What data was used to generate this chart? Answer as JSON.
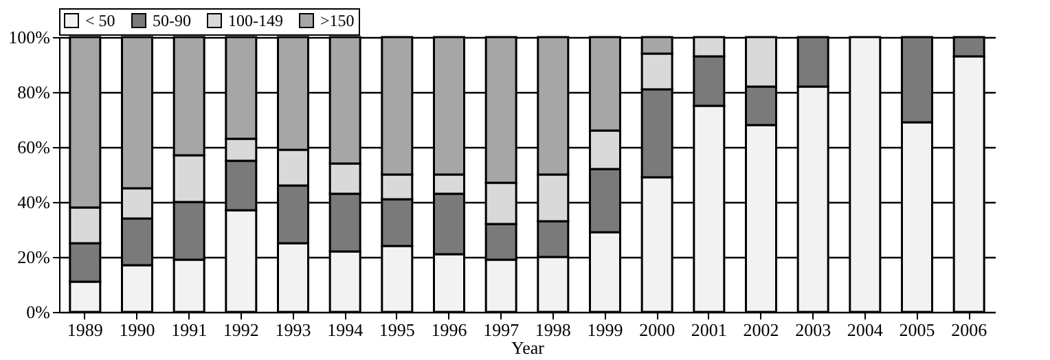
{
  "chart_data": {
    "type": "bar",
    "stacked": true,
    "xlabel": "Year",
    "categories": [
      "1989",
      "1990",
      "1991",
      "1992",
      "1993",
      "1994",
      "1995",
      "1996",
      "1997",
      "1998",
      "1999",
      "2000",
      "2001",
      "2002",
      "2003",
      "2004",
      "2005",
      "2006"
    ],
    "series": [
      {
        "name": "< 50",
        "color": "#f2f2f2",
        "values": [
          11,
          17,
          19,
          37,
          25,
          22,
          24,
          21,
          19,
          20,
          29,
          49,
          75,
          68,
          82,
          100,
          69,
          93
        ]
      },
      {
        "name": "50-90",
        "color": "#7a7a7a",
        "values": [
          14,
          17,
          21,
          18,
          21,
          21,
          17,
          22,
          13,
          13,
          23,
          32,
          18,
          14,
          18,
          null,
          31,
          7
        ]
      },
      {
        "name": "100-149",
        "color": "#d9d9d9",
        "values": [
          13,
          11,
          17,
          8,
          13,
          11,
          9,
          7,
          15,
          17,
          14,
          13,
          7,
          18,
          null,
          null,
          null,
          null
        ]
      },
      {
        "name": ">150",
        "color": "#a6a6a6",
        "values": [
          62,
          55,
          43,
          37,
          41,
          46,
          50,
          50,
          53,
          50,
          34,
          6,
          null,
          null,
          null,
          null,
          null,
          null
        ]
      }
    ],
    "ylim": [
      0,
      100
    ],
    "yticks": [
      {
        "value": 0,
        "label": "0%"
      },
      {
        "value": 20,
        "label": "20%"
      },
      {
        "value": 40,
        "label": "40%"
      },
      {
        "value": 60,
        "label": "60%"
      },
      {
        "value": 80,
        "label": "80%"
      },
      {
        "value": 100,
        "label": "100%"
      }
    ],
    "grid": "y",
    "legend": "top"
  }
}
